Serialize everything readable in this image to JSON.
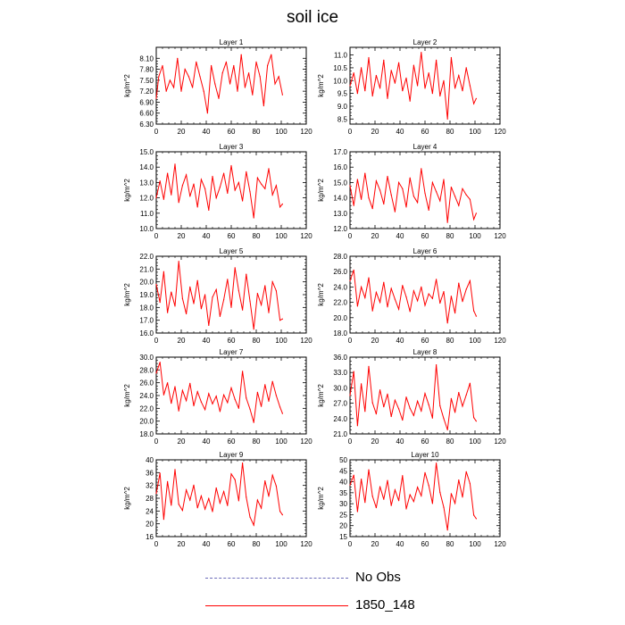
{
  "title": "soil ice",
  "colors": {
    "series": "#ff0000",
    "no_obs": "#6b6bb8"
  },
  "legend": {
    "no_obs": "No Obs",
    "series": "1850_148"
  },
  "chart_data": [
    {
      "type": "line",
      "title": "Layer 1",
      "ylabel": "kg/m^2",
      "xlim": [
        0,
        120
      ],
      "ylim": [
        6.3,
        8.4
      ],
      "xticks": [
        0,
        20,
        40,
        60,
        80,
        100,
        120
      ],
      "xtick_labels": [
        "0",
        "20",
        "40",
        "60",
        "80",
        "100",
        "120"
      ],
      "yticks": [
        6.3,
        6.6,
        6.9,
        7.2,
        7.5,
        7.8,
        8.1
      ],
      "ytick_labels": [
        "6.30",
        "6.60",
        "6.90",
        "7.20",
        "7.50",
        "7.80",
        "8.10"
      ],
      "x": [
        0,
        2,
        5,
        8,
        11,
        14,
        17,
        20,
        23,
        26,
        29,
        32,
        35,
        38,
        41,
        44,
        47,
        50,
        53,
        56,
        59,
        62,
        65,
        68,
        71,
        74,
        77,
        80,
        83,
        86,
        89,
        92,
        95,
        98,
        101
      ],
      "series": [
        {
          "values": [
            7.0,
            7.6,
            7.9,
            7.2,
            7.5,
            7.3,
            8.1,
            7.2,
            7.8,
            7.6,
            7.3,
            8.0,
            7.6,
            7.2,
            6.6,
            7.9,
            7.4,
            7.0,
            7.7,
            8.0,
            7.4,
            7.9,
            7.2,
            8.2,
            7.3,
            7.7,
            7.1,
            8.0,
            7.6,
            6.8,
            7.9,
            8.2,
            7.4,
            7.6,
            7.1
          ]
        }
      ]
    },
    {
      "type": "line",
      "title": "Layer 2",
      "ylabel": "kg/m^2",
      "xlim": [
        0,
        120
      ],
      "ylim": [
        8.3,
        11.3
      ],
      "xticks": [
        0,
        20,
        40,
        60,
        80,
        100,
        120
      ],
      "xtick_labels": [
        "0",
        "20",
        "40",
        "60",
        "80",
        "100",
        "120"
      ],
      "yticks": [
        8.5,
        9.0,
        9.5,
        10.0,
        10.5,
        11.0
      ],
      "ytick_labels": [
        "8.5",
        "9.0",
        "9.5",
        "10.0",
        "10.5",
        "11.0"
      ],
      "x": [
        0,
        3,
        6,
        9,
        12,
        15,
        18,
        21,
        24,
        27,
        30,
        33,
        36,
        39,
        42,
        45,
        48,
        51,
        54,
        57,
        60,
        63,
        66,
        69,
        72,
        75,
        78,
        81,
        84,
        87,
        90,
        93,
        96,
        99,
        101
      ],
      "series": [
        {
          "values": [
            9.8,
            10.3,
            9.5,
            10.5,
            9.6,
            10.9,
            9.4,
            10.2,
            9.7,
            10.8,
            9.3,
            10.4,
            9.9,
            10.7,
            9.6,
            10.1,
            9.2,
            10.6,
            9.8,
            11.1,
            9.7,
            10.3,
            9.5,
            10.8,
            9.4,
            10.0,
            8.5,
            10.9,
            9.7,
            10.2,
            9.6,
            10.5,
            9.8,
            9.1,
            9.3
          ]
        }
      ]
    },
    {
      "type": "line",
      "title": "Layer 3",
      "ylabel": "kg/m^2",
      "xlim": [
        0,
        120
      ],
      "ylim": [
        10.0,
        15.0
      ],
      "xticks": [
        0,
        20,
        40,
        60,
        80,
        100,
        120
      ],
      "xtick_labels": [
        "0",
        "20",
        "40",
        "60",
        "80",
        "100",
        "120"
      ],
      "yticks": [
        10,
        11,
        12,
        13,
        14,
        15
      ],
      "ytick_labels": [
        "10.0",
        "11.0",
        "12.0",
        "13.0",
        "14.0",
        "15.0"
      ],
      "x": [
        0,
        3,
        6,
        9,
        12,
        15,
        18,
        21,
        24,
        27,
        30,
        33,
        36,
        39,
        42,
        45,
        48,
        51,
        54,
        57,
        60,
        63,
        66,
        69,
        72,
        75,
        78,
        81,
        84,
        87,
        90,
        93,
        96,
        99,
        101
      ],
      "series": [
        {
          "values": [
            12.0,
            13.1,
            11.9,
            13.6,
            12.2,
            14.2,
            11.7,
            12.8,
            13.5,
            12.1,
            12.9,
            11.4,
            13.2,
            12.6,
            11.2,
            13.4,
            12.0,
            12.7,
            13.6,
            12.3,
            14.1,
            12.5,
            13.0,
            11.8,
            13.7,
            12.4,
            10.7,
            13.3,
            12.9,
            12.6,
            13.9,
            12.2,
            12.8,
            11.4,
            11.6
          ]
        }
      ]
    },
    {
      "type": "line",
      "title": "Layer 4",
      "ylabel": "kg/m^2",
      "xlim": [
        0,
        120
      ],
      "ylim": [
        12.0,
        17.0
      ],
      "xticks": [
        0,
        20,
        40,
        60,
        80,
        100,
        120
      ],
      "xtick_labels": [
        "0",
        "20",
        "40",
        "60",
        "80",
        "100",
        "120"
      ],
      "yticks": [
        12,
        13,
        14,
        15,
        16,
        17
      ],
      "ytick_labels": [
        "12.0",
        "13.0",
        "14.0",
        "15.0",
        "16.0",
        "17.0"
      ],
      "x": [
        0,
        3,
        6,
        9,
        12,
        15,
        18,
        21,
        24,
        27,
        30,
        33,
        36,
        39,
        42,
        45,
        48,
        51,
        54,
        57,
        60,
        63,
        66,
        69,
        72,
        75,
        78,
        81,
        84,
        87,
        90,
        93,
        96,
        99,
        101
      ],
      "series": [
        {
          "values": [
            14.8,
            13.5,
            15.2,
            13.9,
            15.6,
            14.0,
            13.3,
            15.1,
            14.5,
            13.6,
            15.4,
            14.2,
            13.1,
            15.0,
            14.6,
            13.4,
            15.3,
            14.1,
            13.7,
            15.9,
            14.3,
            13.2,
            15.0,
            14.4,
            13.8,
            15.2,
            12.4,
            14.7,
            14.1,
            13.5,
            14.6,
            14.2,
            13.9,
            12.6,
            13.0
          ]
        }
      ]
    },
    {
      "type": "line",
      "title": "Layer 5",
      "ylabel": "kg/m^2",
      "xlim": [
        0,
        120
      ],
      "ylim": [
        16.0,
        22.0
      ],
      "xticks": [
        0,
        20,
        40,
        60,
        80,
        100,
        120
      ],
      "xtick_labels": [
        "0",
        "20",
        "40",
        "60",
        "80",
        "100",
        "120"
      ],
      "yticks": [
        16,
        17,
        18,
        19,
        20,
        21,
        22
      ],
      "ytick_labels": [
        "16.0",
        "17.0",
        "18.0",
        "19.0",
        "20.0",
        "21.0",
        "22.0"
      ],
      "x": [
        0,
        3,
        6,
        9,
        12,
        15,
        18,
        21,
        24,
        27,
        30,
        33,
        36,
        39,
        42,
        45,
        48,
        51,
        54,
        57,
        60,
        63,
        66,
        69,
        72,
        75,
        78,
        81,
        84,
        87,
        90,
        93,
        96,
        99,
        101
      ],
      "series": [
        {
          "values": [
            19.8,
            18.4,
            20.8,
            17.6,
            19.2,
            18.1,
            21.6,
            18.7,
            17.5,
            19.6,
            18.3,
            20.1,
            17.9,
            19.0,
            16.6,
            18.8,
            19.4,
            17.3,
            18.6,
            20.2,
            18.0,
            21.1,
            19.3,
            17.8,
            20.6,
            18.5,
            16.3,
            19.1,
            18.2,
            19.7,
            17.6,
            20.0,
            19.3,
            17.0,
            17.1
          ]
        }
      ]
    },
    {
      "type": "line",
      "title": "Layer 6",
      "ylabel": "kg/m^2",
      "xlim": [
        0,
        120
      ],
      "ylim": [
        18.0,
        28.0
      ],
      "xticks": [
        0,
        20,
        40,
        60,
        80,
        100,
        120
      ],
      "xtick_labels": [
        "0",
        "20",
        "40",
        "60",
        "80",
        "100",
        "120"
      ],
      "yticks": [
        18,
        20,
        22,
        24,
        26,
        28
      ],
      "ytick_labels": [
        "18.0",
        "20.0",
        "22.0",
        "24.0",
        "26.0",
        "28.0"
      ],
      "x": [
        0,
        3,
        6,
        9,
        12,
        15,
        18,
        21,
        24,
        27,
        30,
        33,
        36,
        39,
        42,
        45,
        48,
        51,
        54,
        57,
        60,
        63,
        66,
        69,
        72,
        75,
        78,
        81,
        84,
        87,
        90,
        93,
        96,
        99,
        101
      ],
      "series": [
        {
          "values": [
            24.8,
            26.2,
            21.5,
            24.0,
            22.6,
            25.2,
            20.9,
            23.3,
            22.0,
            24.6,
            21.4,
            23.8,
            22.4,
            21.1,
            24.2,
            22.7,
            20.8,
            23.5,
            22.2,
            24.0,
            21.6,
            23.1,
            22.5,
            25.0,
            21.9,
            23.4,
            19.3,
            22.8,
            20.6,
            24.5,
            22.1,
            23.7,
            24.8,
            20.9,
            20.2
          ]
        }
      ]
    },
    {
      "type": "line",
      "title": "Layer 7",
      "ylabel": "kg/m^2",
      "xlim": [
        0,
        120
      ],
      "ylim": [
        18.0,
        30.0
      ],
      "xticks": [
        0,
        20,
        40,
        60,
        80,
        100,
        120
      ],
      "xtick_labels": [
        "0",
        "20",
        "40",
        "60",
        "80",
        "100",
        "120"
      ],
      "yticks": [
        18,
        20,
        22,
        24,
        26,
        28,
        30
      ],
      "ytick_labels": [
        "18.0",
        "20.0",
        "22.0",
        "24.0",
        "26.0",
        "28.0",
        "30.0"
      ],
      "x": [
        0,
        3,
        6,
        9,
        12,
        15,
        18,
        21,
        24,
        27,
        30,
        33,
        36,
        39,
        42,
        45,
        48,
        51,
        54,
        57,
        60,
        63,
        66,
        69,
        72,
        75,
        78,
        81,
        84,
        87,
        90,
        93,
        96,
        99,
        101
      ],
      "series": [
        {
          "values": [
            27.5,
            29.2,
            24.1,
            26.0,
            22.8,
            25.4,
            21.6,
            24.8,
            23.2,
            25.9,
            22.4,
            24.6,
            23.0,
            21.8,
            24.3,
            22.7,
            23.9,
            21.5,
            24.1,
            22.9,
            25.2,
            23.4,
            22.0,
            27.8,
            23.6,
            21.9,
            19.8,
            24.5,
            22.3,
            25.7,
            23.1,
            26.2,
            24.0,
            22.2,
            21.2
          ]
        }
      ]
    },
    {
      "type": "line",
      "title": "Layer 8",
      "ylabel": "kg/m^2",
      "xlim": [
        0,
        120
      ],
      "ylim": [
        21.0,
        36.0
      ],
      "xticks": [
        0,
        20,
        40,
        60,
        80,
        100,
        120
      ],
      "xtick_labels": [
        "0",
        "20",
        "40",
        "60",
        "80",
        "100",
        "120"
      ],
      "yticks": [
        21,
        24,
        27,
        30,
        33,
        36
      ],
      "ytick_labels": [
        "21.0",
        "24.0",
        "27.0",
        "30.0",
        "33.0",
        "36.0"
      ],
      "x": [
        0,
        3,
        6,
        9,
        12,
        15,
        18,
        21,
        24,
        27,
        30,
        33,
        36,
        39,
        42,
        45,
        48,
        51,
        54,
        57,
        60,
        63,
        66,
        69,
        72,
        75,
        78,
        81,
        84,
        87,
        90,
        93,
        96,
        99,
        101
      ],
      "series": [
        {
          "values": [
            28.5,
            33.2,
            22.6,
            30.8,
            25.4,
            34.2,
            27.1,
            24.9,
            29.6,
            26.3,
            28.8,
            24.4,
            27.6,
            25.9,
            23.7,
            28.2,
            26.0,
            24.6,
            27.4,
            25.5,
            28.9,
            26.7,
            24.1,
            34.5,
            26.5,
            24.0,
            21.8,
            27.9,
            25.2,
            29.1,
            26.4,
            28.6,
            30.9,
            24.2,
            23.5
          ]
        }
      ]
    },
    {
      "type": "line",
      "title": "Layer 9",
      "ylabel": "kg/m^2",
      "xlim": [
        0,
        120
      ],
      "ylim": [
        16,
        40
      ],
      "xticks": [
        0,
        20,
        40,
        60,
        80,
        100,
        120
      ],
      "xtick_labels": [
        "0",
        "20",
        "40",
        "60",
        "80",
        "100",
        "120"
      ],
      "yticks": [
        16,
        20,
        24,
        28,
        32,
        36,
        40
      ],
      "ytick_labels": [
        "16",
        "20",
        "24",
        "28",
        "32",
        "36",
        "40"
      ],
      "x": [
        0,
        3,
        6,
        9,
        12,
        15,
        18,
        21,
        24,
        27,
        30,
        33,
        36,
        39,
        42,
        45,
        48,
        51,
        54,
        57,
        60,
        63,
        66,
        69,
        72,
        75,
        78,
        81,
        84,
        87,
        90,
        93,
        96,
        99,
        101
      ],
      "series": [
        {
          "values": [
            29.5,
            35.8,
            21.4,
            33.2,
            25.8,
            37.0,
            26.1,
            24.2,
            30.6,
            27.4,
            32.1,
            25.0,
            28.7,
            24.6,
            27.9,
            23.8,
            31.2,
            26.5,
            30.1,
            25.7,
            35.6,
            33.8,
            27.2,
            39.0,
            28.3,
            22.1,
            19.6,
            27.4,
            24.9,
            33.4,
            28.6,
            35.2,
            31.8,
            23.9,
            22.8
          ]
        }
      ]
    },
    {
      "type": "line",
      "title": "Layer 10",
      "ylabel": "kg/m^2",
      "xlim": [
        0,
        120
      ],
      "ylim": [
        15,
        50
      ],
      "xticks": [
        0,
        20,
        40,
        60,
        80,
        100,
        120
      ],
      "xtick_labels": [
        "0",
        "20",
        "40",
        "60",
        "80",
        "100",
        "120"
      ],
      "yticks": [
        15,
        20,
        25,
        30,
        35,
        40,
        45,
        50
      ],
      "ytick_labels": [
        "15",
        "20",
        "25",
        "30",
        "35",
        "40",
        "45",
        "50"
      ],
      "x": [
        0,
        3,
        6,
        9,
        12,
        15,
        18,
        21,
        24,
        27,
        30,
        33,
        36,
        39,
        42,
        45,
        48,
        51,
        54,
        57,
        60,
        63,
        66,
        69,
        72,
        75,
        78,
        81,
        84,
        87,
        90,
        93,
        96,
        99,
        101
      ],
      "series": [
        {
          "values": [
            38.5,
            43.0,
            26.4,
            41.2,
            30.6,
            45.5,
            33.4,
            28.2,
            37.8,
            32.0,
            40.6,
            29.2,
            36.3,
            31.4,
            42.8,
            27.6,
            34.1,
            31.0,
            37.5,
            33.6,
            44.2,
            38.3,
            30.1,
            48.5,
            35.2,
            28.4,
            18.0,
            34.6,
            30.2,
            40.8,
            33.0,
            44.6,
            39.2,
            24.8,
            23.2
          ]
        }
      ]
    }
  ]
}
